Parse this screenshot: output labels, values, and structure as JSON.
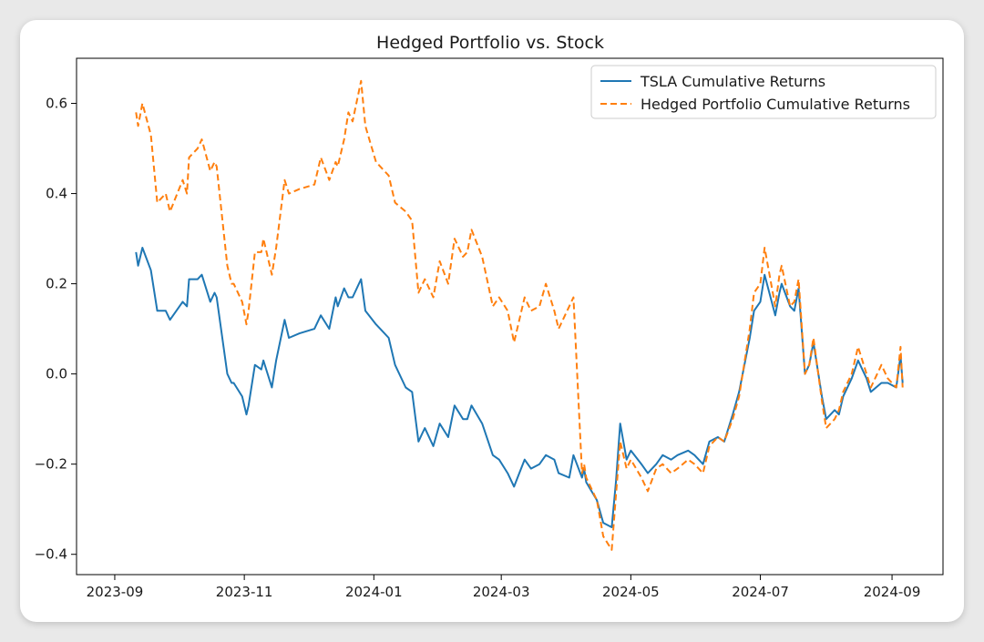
{
  "chart_data": {
    "type": "line",
    "title": "Hedged Portfolio vs. Stock",
    "xlabel": "",
    "ylabel": "",
    "xlim": [
      "2023-08-14",
      "2024-09-25"
    ],
    "ylim": [
      -0.445,
      0.7
    ],
    "xticks": [
      "2023-09-01",
      "2023-11-01",
      "2024-01-01",
      "2024-03-01",
      "2024-05-01",
      "2024-07-01",
      "2024-09-01"
    ],
    "xtick_labels": [
      "2023-09",
      "2023-11",
      "2024-01",
      "2024-03",
      "2024-05",
      "2024-07",
      "2024-09"
    ],
    "yticks": [
      -0.4,
      -0.2,
      0.0,
      0.2,
      0.4,
      0.6
    ],
    "ytick_labels": [
      "−0.4",
      "−0.2",
      "0.0",
      "0.2",
      "0.4",
      "0.6"
    ],
    "grid": false,
    "legend_position": "top-right",
    "series": [
      {
        "name": "TSLA Cumulative Returns",
        "color": "#1f77b4",
        "style": "solid",
        "x": [
          "2023-09-11",
          "2023-09-12",
          "2023-09-14",
          "2023-09-18",
          "2023-09-21",
          "2023-09-25",
          "2023-09-27",
          "2023-10-03",
          "2023-10-05",
          "2023-10-06",
          "2023-10-10",
          "2023-10-12",
          "2023-10-16",
          "2023-10-18",
          "2023-10-19",
          "2023-10-24",
          "2023-10-26",
          "2023-10-27",
          "2023-10-31",
          "2023-11-02",
          "2023-11-03",
          "2023-11-06",
          "2023-11-09",
          "2023-11-10",
          "2023-11-14",
          "2023-11-16",
          "2023-11-20",
          "2023-11-22",
          "2023-11-27",
          "2023-12-04",
          "2023-12-07",
          "2023-12-11",
          "2023-12-14",
          "2023-12-15",
          "2023-12-18",
          "2023-12-20",
          "2023-12-22",
          "2023-12-26",
          "2023-12-28",
          "2024-01-02",
          "2024-01-04",
          "2024-01-08",
          "2024-01-11",
          "2024-01-16",
          "2024-01-19",
          "2024-01-22",
          "2024-01-24",
          "2024-01-25",
          "2024-01-29",
          "2024-02-01",
          "2024-02-05",
          "2024-02-08",
          "2024-02-12",
          "2024-02-14",
          "2024-02-16",
          "2024-02-21",
          "2024-02-26",
          "2024-02-29",
          "2024-03-04",
          "2024-03-07",
          "2024-03-12",
          "2024-03-15",
          "2024-03-19",
          "2024-03-22",
          "2024-03-26",
          "2024-03-28",
          "2024-04-02",
          "2024-04-04",
          "2024-04-08",
          "2024-04-09",
          "2024-04-10",
          "2024-04-15",
          "2024-04-18",
          "2024-04-22",
          "2024-04-24",
          "2024-04-26",
          "2024-04-29",
          "2024-05-01",
          "2024-05-06",
          "2024-05-09",
          "2024-05-13",
          "2024-05-16",
          "2024-05-20",
          "2024-05-23",
          "2024-05-28",
          "2024-05-31",
          "2024-06-04",
          "2024-06-07",
          "2024-06-11",
          "2024-06-14",
          "2024-06-18",
          "2024-06-21",
          "2024-06-26",
          "2024-06-28",
          "2024-07-01",
          "2024-07-03",
          "2024-07-08",
          "2024-07-10",
          "2024-07-11",
          "2024-07-15",
          "2024-07-17",
          "2024-07-19",
          "2024-07-22",
          "2024-07-24",
          "2024-07-26",
          "2024-07-30",
          "2024-08-01",
          "2024-08-05",
          "2024-08-07",
          "2024-08-09",
          "2024-08-13",
          "2024-08-16",
          "2024-08-20",
          "2024-08-22",
          "2024-08-27",
          "2024-08-30",
          "2024-09-03",
          "2024-09-05",
          "2024-09-06"
        ],
        "values": [
          0.27,
          0.24,
          0.28,
          0.23,
          0.14,
          0.14,
          0.12,
          0.16,
          0.15,
          0.21,
          0.21,
          0.22,
          0.16,
          0.18,
          0.17,
          0.0,
          -0.02,
          -0.02,
          -0.05,
          -0.09,
          -0.07,
          0.02,
          0.01,
          0.03,
          -0.03,
          0.03,
          0.12,
          0.08,
          0.09,
          0.1,
          0.13,
          0.1,
          0.17,
          0.15,
          0.19,
          0.17,
          0.17,
          0.21,
          0.14,
          0.11,
          0.1,
          0.08,
          0.02,
          -0.03,
          -0.04,
          -0.15,
          -0.13,
          -0.12,
          -0.16,
          -0.11,
          -0.14,
          -0.07,
          -0.1,
          -0.1,
          -0.07,
          -0.11,
          -0.18,
          -0.19,
          -0.22,
          -0.25,
          -0.19,
          -0.21,
          -0.2,
          -0.18,
          -0.19,
          -0.22,
          -0.23,
          -0.18,
          -0.23,
          -0.21,
          -0.24,
          -0.28,
          -0.33,
          -0.34,
          -0.24,
          -0.11,
          -0.19,
          -0.17,
          -0.2,
          -0.22,
          -0.2,
          -0.18,
          -0.19,
          -0.18,
          -0.17,
          -0.18,
          -0.2,
          -0.15,
          -0.14,
          -0.15,
          -0.09,
          -0.04,
          0.08,
          0.14,
          0.16,
          0.22,
          0.13,
          0.18,
          0.2,
          0.15,
          0.14,
          0.19,
          0.0,
          0.02,
          0.07,
          -0.05,
          -0.1,
          -0.08,
          -0.09,
          -0.05,
          -0.01,
          0.03,
          -0.01,
          -0.04,
          -0.02,
          -0.02,
          -0.03,
          0.04,
          -0.02
        ]
      },
      {
        "name": "Hedged Portfolio Cumulative Returns",
        "color": "#ff7f0e",
        "style": "dashed",
        "x": [
          "2023-09-11",
          "2023-09-12",
          "2023-09-14",
          "2023-09-18",
          "2023-09-21",
          "2023-09-25",
          "2023-09-27",
          "2023-10-03",
          "2023-10-05",
          "2023-10-06",
          "2023-10-10",
          "2023-10-12",
          "2023-10-16",
          "2023-10-18",
          "2023-10-19",
          "2023-10-24",
          "2023-10-26",
          "2023-10-27",
          "2023-10-31",
          "2023-11-02",
          "2023-11-03",
          "2023-11-06",
          "2023-11-09",
          "2023-11-10",
          "2023-11-14",
          "2023-11-16",
          "2023-11-20",
          "2023-11-22",
          "2023-11-27",
          "2023-12-04",
          "2023-12-07",
          "2023-12-11",
          "2023-12-14",
          "2023-12-15",
          "2023-12-18",
          "2023-12-20",
          "2023-12-22",
          "2023-12-26",
          "2023-12-28",
          "2024-01-02",
          "2024-01-04",
          "2024-01-08",
          "2024-01-11",
          "2024-01-16",
          "2024-01-19",
          "2024-01-22",
          "2024-01-24",
          "2024-01-25",
          "2024-01-29",
          "2024-02-01",
          "2024-02-05",
          "2024-02-08",
          "2024-02-12",
          "2024-02-14",
          "2024-02-16",
          "2024-02-21",
          "2024-02-26",
          "2024-02-29",
          "2024-03-04",
          "2024-03-07",
          "2024-03-12",
          "2024-03-15",
          "2024-03-19",
          "2024-03-22",
          "2024-03-26",
          "2024-03-28",
          "2024-04-02",
          "2024-04-04",
          "2024-04-08",
          "2024-04-09",
          "2024-04-10",
          "2024-04-15",
          "2024-04-18",
          "2024-04-22",
          "2024-04-24",
          "2024-04-26",
          "2024-04-29",
          "2024-05-01",
          "2024-05-06",
          "2024-05-09",
          "2024-05-13",
          "2024-05-16",
          "2024-05-20",
          "2024-05-23",
          "2024-05-28",
          "2024-05-31",
          "2024-06-04",
          "2024-06-07",
          "2024-06-11",
          "2024-06-14",
          "2024-06-18",
          "2024-06-21",
          "2024-06-26",
          "2024-06-28",
          "2024-07-01",
          "2024-07-03",
          "2024-07-08",
          "2024-07-10",
          "2024-07-11",
          "2024-07-15",
          "2024-07-17",
          "2024-07-19",
          "2024-07-22",
          "2024-07-24",
          "2024-07-26",
          "2024-07-30",
          "2024-08-01",
          "2024-08-05",
          "2024-08-07",
          "2024-08-09",
          "2024-08-13",
          "2024-08-16",
          "2024-08-20",
          "2024-08-22",
          "2024-08-27",
          "2024-08-30",
          "2024-09-03",
          "2024-09-05",
          "2024-09-06"
        ],
        "values": [
          0.58,
          0.55,
          0.6,
          0.53,
          0.38,
          0.4,
          0.36,
          0.43,
          0.4,
          0.48,
          0.5,
          0.52,
          0.45,
          0.47,
          0.46,
          0.24,
          0.2,
          0.2,
          0.16,
          0.11,
          0.14,
          0.27,
          0.27,
          0.3,
          0.22,
          0.28,
          0.43,
          0.4,
          0.41,
          0.42,
          0.48,
          0.43,
          0.47,
          0.46,
          0.52,
          0.58,
          0.56,
          0.65,
          0.55,
          0.47,
          0.46,
          0.44,
          0.38,
          0.36,
          0.34,
          0.18,
          0.2,
          0.21,
          0.17,
          0.25,
          0.2,
          0.3,
          0.26,
          0.27,
          0.32,
          0.26,
          0.15,
          0.17,
          0.14,
          0.07,
          0.17,
          0.14,
          0.15,
          0.2,
          0.14,
          0.1,
          0.15,
          0.17,
          -0.22,
          -0.2,
          -0.23,
          -0.28,
          -0.36,
          -0.39,
          -0.27,
          -0.15,
          -0.21,
          -0.19,
          -0.23,
          -0.26,
          -0.21,
          -0.2,
          -0.22,
          -0.21,
          -0.19,
          -0.2,
          -0.22,
          -0.16,
          -0.14,
          -0.15,
          -0.1,
          -0.05,
          0.1,
          0.18,
          0.2,
          0.28,
          0.15,
          0.22,
          0.24,
          0.15,
          0.16,
          0.21,
          0.0,
          0.02,
          0.08,
          -0.06,
          -0.12,
          -0.1,
          -0.08,
          -0.04,
          0.0,
          0.06,
          0.0,
          -0.03,
          0.02,
          -0.01,
          -0.03,
          0.06,
          -0.03
        ]
      }
    ]
  }
}
